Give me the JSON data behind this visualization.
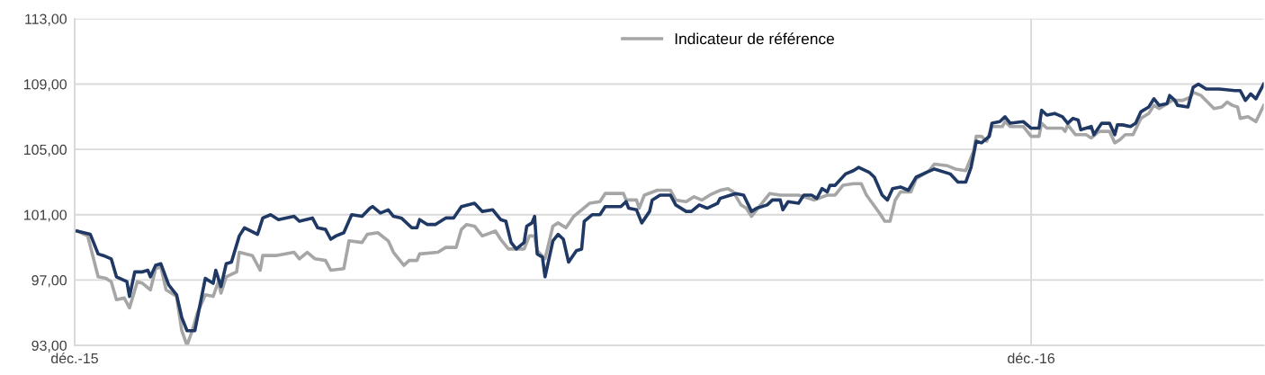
{
  "chart_data": {
    "type": "line",
    "xlim": [
      "2015-12-31",
      "2017-03-30"
    ],
    "xticks": [
      {
        "value": "2015-12-31",
        "label": "déc.-15"
      },
      {
        "value": "2016-12-31",
        "label": "déc.-16"
      }
    ],
    "ylim": [
      93,
      113
    ],
    "yticks": [
      {
        "value": 93,
        "label": "93,00"
      },
      {
        "value": 97,
        "label": "97,00"
      },
      {
        "value": 101,
        "label": "101,00"
      },
      {
        "value": 105,
        "label": "105,00"
      },
      {
        "value": 109,
        "label": "109,00"
      },
      {
        "value": 113,
        "label": "113,00"
      }
    ],
    "grid": true,
    "legend": "top",
    "marker": "none",
    "line_style": "solid",
    "series": [
      {
        "color": "#1f3864",
        "x": [
          "2016-01-01",
          "2016-01-06",
          "2016-01-09",
          "2016-01-11",
          "2016-01-14",
          "2016-01-16",
          "2016-01-20",
          "2016-01-21",
          "2016-01-23",
          "2016-01-26",
          "2016-01-28",
          "2016-01-29",
          "2016-01-31",
          "2016-02-02",
          "2016-02-05",
          "2016-02-08",
          "2016-02-10",
          "2016-02-12",
          "2016-02-15",
          "2016-02-19",
          "2016-02-22",
          "2016-02-23",
          "2016-02-25",
          "2016-02-27",
          "2016-02-29",
          "2016-03-03",
          "2016-03-05",
          "2016-03-10",
          "2016-03-12",
          "2016-03-15",
          "2016-03-18",
          "2016-03-24",
          "2016-03-26",
          "2016-03-31",
          "2016-04-02",
          "2016-04-05",
          "2016-04-07",
          "2016-04-09",
          "2016-04-12",
          "2016-04-15",
          "2016-04-19",
          "2016-04-22",
          "2016-04-23",
          "2016-04-26",
          "2016-04-29",
          "2016-05-01",
          "2016-05-04",
          "2016-05-08",
          "2016-05-10",
          "2016-05-11",
          "2016-05-14",
          "2016-05-17",
          "2016-05-20",
          "2016-05-21",
          "2016-05-24",
          "2016-05-27",
          "2016-06-01",
          "2016-06-04",
          "2016-06-08",
          "2016-06-11",
          "2016-06-13",
          "2016-06-15",
          "2016-06-17",
          "2016-06-20",
          "2016-06-21",
          "2016-06-23",
          "2016-06-24",
          "2016-06-25",
          "2016-06-27",
          "2016-06-28",
          "2016-07-01",
          "2016-07-03",
          "2016-07-05",
          "2016-07-07",
          "2016-07-10",
          "2016-07-12",
          "2016-07-13",
          "2016-07-16",
          "2016-07-19",
          "2016-07-21",
          "2016-07-27",
          "2016-07-29",
          "2016-07-30",
          "2016-08-02",
          "2016-08-04",
          "2016-08-07",
          "2016-08-08",
          "2016-08-11",
          "2016-08-15",
          "2016-08-17",
          "2016-08-21",
          "2016-08-23",
          "2016-08-26",
          "2016-08-29",
          "2016-09-02",
          "2016-09-03",
          "2016-09-07",
          "2016-09-09",
          "2016-09-12",
          "2016-09-15",
          "2016-09-17",
          "2016-09-21",
          "2016-09-23",
          "2016-09-26",
          "2016-09-27",
          "2016-09-29",
          "2016-10-03",
          "2016-10-05",
          "2016-10-08",
          "2016-10-10",
          "2016-10-12",
          "2016-10-14",
          "2016-10-15",
          "2016-10-17",
          "2016-10-21",
          "2016-10-24",
          "2016-10-26",
          "2016-10-30",
          "2016-11-01",
          "2016-11-04",
          "2016-11-06",
          "2016-11-08",
          "2016-11-11",
          "2016-11-14",
          "2016-11-17",
          "2016-11-21",
          "2016-11-24",
          "2016-11-30",
          "2016-12-03",
          "2016-12-06",
          "2016-12-08",
          "2016-12-10",
          "2016-12-12",
          "2016-12-15",
          "2016-12-16",
          "2016-12-19",
          "2016-12-21",
          "2016-12-23",
          "2016-12-28",
          "2016-12-31",
          "2017-01-03",
          "2017-01-04",
          "2017-01-06",
          "2017-01-09",
          "2017-01-12",
          "2017-01-14",
          "2017-01-16",
          "2017-01-18",
          "2017-01-19",
          "2017-01-23",
          "2017-01-24",
          "2017-01-27",
          "2017-01-30",
          "2017-02-01",
          "2017-02-02",
          "2017-02-04",
          "2017-02-07",
          "2017-02-09",
          "2017-02-11",
          "2017-02-14",
          "2017-02-16",
          "2017-02-18",
          "2017-02-21",
          "2017-02-22",
          "2017-02-24",
          "2017-02-25",
          "2017-03-01",
          "2017-03-03",
          "2017-03-05",
          "2017-03-08",
          "2017-03-13",
          "2017-03-19",
          "2017-03-21",
          "2017-03-23",
          "2017-03-25",
          "2017-03-27",
          "2017-03-30"
        ],
        "values": [
          100.0,
          99.8,
          98.6,
          98.5,
          98.3,
          97.2,
          96.9,
          96.0,
          97.5,
          97.5,
          97.6,
          97.2,
          97.9,
          98.0,
          96.7,
          96.1,
          94.7,
          93.9,
          93.9,
          97.1,
          96.8,
          97.6,
          96.6,
          98.0,
          98.1,
          99.7,
          100.2,
          99.8,
          100.8,
          101.0,
          100.7,
          100.9,
          100.6,
          100.8,
          100.2,
          100.1,
          99.5,
          99.7,
          99.9,
          101.0,
          100.9,
          101.4,
          101.5,
          101.1,
          101.3,
          100.9,
          100.8,
          100.2,
          100.2,
          100.7,
          100.4,
          100.4,
          100.7,
          100.8,
          100.8,
          101.5,
          101.7,
          101.2,
          101.3,
          100.7,
          100.6,
          99.3,
          98.9,
          99.3,
          100.3,
          100.5,
          100.9,
          98.6,
          98.4,
          97.2,
          99.4,
          99.8,
          99.5,
          98.1,
          98.8,
          98.9,
          100.6,
          101.0,
          101.0,
          101.5,
          101.5,
          101.8,
          101.4,
          101.3,
          100.5,
          101.2,
          101.9,
          102.2,
          102.2,
          101.6,
          101.2,
          101.2,
          101.6,
          101.4,
          101.7,
          102.0,
          102.2,
          102.3,
          102.2,
          101.2,
          101.4,
          101.6,
          101.9,
          101.9,
          101.3,
          101.8,
          101.7,
          102.2,
          102.2,
          102.0,
          102.6,
          102.4,
          102.8,
          102.8,
          103.5,
          103.7,
          103.9,
          103.6,
          103.3,
          102.2,
          101.9,
          102.6,
          102.7,
          102.5,
          103.3,
          103.6,
          103.8,
          103.5,
          103.0,
          103.0,
          103.9,
          105.5,
          105.4,
          105.8,
          106.6,
          106.7,
          107.0,
          106.6,
          106.7,
          106.3,
          106.3,
          107.4,
          107.1,
          107.2,
          107.0,
          106.6,
          106.9,
          106.8,
          106.2,
          106.4,
          105.9,
          106.6,
          106.6,
          105.9,
          106.5,
          106.5,
          106.4,
          106.6,
          107.3,
          107.6,
          108.1,
          107.7,
          107.8,
          108.3,
          108.0,
          107.7,
          107.6,
          108.8,
          109.0,
          108.7,
          108.7,
          108.6,
          108.6,
          108.0,
          108.4,
          108.1,
          109.0
        ]
      },
      {
        "name": "Indicateur de référence",
        "color": "#a6a6a6",
        "x": [
          "2016-01-01",
          "2016-01-05",
          "2016-01-09",
          "2016-01-12",
          "2016-01-14",
          "2016-01-16",
          "2016-01-19",
          "2016-01-21",
          "2016-01-24",
          "2016-01-26",
          "2016-01-29",
          "2016-01-31",
          "2016-02-02",
          "2016-02-04",
          "2016-02-08",
          "2016-02-10",
          "2016-02-12",
          "2016-02-14",
          "2016-02-16",
          "2016-02-19",
          "2016-02-22",
          "2016-02-24",
          "2016-02-25",
          "2016-02-27",
          "2016-03-02",
          "2016-03-03",
          "2016-03-08",
          "2016-03-11",
          "2016-03-12",
          "2016-03-17",
          "2016-03-24",
          "2016-03-26",
          "2016-03-29",
          "2016-04-01",
          "2016-04-05",
          "2016-04-07",
          "2016-04-12",
          "2016-04-14",
          "2016-04-19",
          "2016-04-21",
          "2016-04-25",
          "2016-04-29",
          "2016-05-01",
          "2016-05-05",
          "2016-05-07",
          "2016-05-10",
          "2016-05-11",
          "2016-05-18",
          "2016-05-21",
          "2016-05-25",
          "2016-05-27",
          "2016-05-29",
          "2016-06-01",
          "2016-06-04",
          "2016-06-09",
          "2016-06-11",
          "2016-06-14",
          "2016-06-20",
          "2016-06-22",
          "2016-06-24",
          "2016-06-25",
          "2016-06-28",
          "2016-07-01",
          "2016-07-03",
          "2016-07-06",
          "2016-07-09",
          "2016-07-12",
          "2016-07-15",
          "2016-07-19",
          "2016-07-21",
          "2016-07-28",
          "2016-07-29",
          "2016-08-02",
          "2016-08-03",
          "2016-08-05",
          "2016-08-10",
          "2016-08-15",
          "2016-08-17",
          "2016-08-21",
          "2016-08-24",
          "2016-08-27",
          "2016-08-30",
          "2016-09-03",
          "2016-09-06",
          "2016-09-08",
          "2016-09-11",
          "2016-09-13",
          "2016-09-15",
          "2016-09-18",
          "2016-09-22",
          "2016-09-26",
          "2016-10-03",
          "2016-10-07",
          "2016-10-09",
          "2016-10-14",
          "2016-10-17",
          "2016-10-20",
          "2016-10-24",
          "2016-10-27",
          "2016-10-29",
          "2016-11-03",
          "2016-11-05",
          "2016-11-07",
          "2016-11-09",
          "2016-11-11",
          "2016-11-15",
          "2016-11-17",
          "2016-11-22",
          "2016-11-24",
          "2016-11-29",
          "2016-12-02",
          "2016-12-06",
          "2016-12-09",
          "2016-12-10",
          "2016-12-12",
          "2016-12-14",
          "2016-12-16",
          "2016-12-20",
          "2016-12-21",
          "2016-12-23",
          "2016-12-28",
          "2016-12-31",
          "2017-01-03",
          "2017-01-04",
          "2017-01-06",
          "2017-01-12",
          "2017-01-13",
          "2017-01-14",
          "2017-01-17",
          "2017-01-21",
          "2017-01-23",
          "2017-01-26",
          "2017-01-30",
          "2017-02-01",
          "2017-02-03",
          "2017-02-05",
          "2017-02-08",
          "2017-02-11",
          "2017-02-14",
          "2017-02-16",
          "2017-02-18",
          "2017-02-23",
          "2017-02-27",
          "2017-03-02",
          "2017-03-03",
          "2017-03-06",
          "2017-03-11",
          "2017-03-14",
          "2017-03-16",
          "2017-03-18",
          "2017-03-20",
          "2017-03-21",
          "2017-03-24",
          "2017-03-27",
          "2017-03-30"
        ],
        "values": [
          100.0,
          99.7,
          97.2,
          97.1,
          96.9,
          95.8,
          95.9,
          95.3,
          96.9,
          96.8,
          96.4,
          97.7,
          97.8,
          96.4,
          96.0,
          93.9,
          93.0,
          93.9,
          95.0,
          96.1,
          96.0,
          96.9,
          96.2,
          97.2,
          97.5,
          98.7,
          98.5,
          97.6,
          98.5,
          98.5,
          98.7,
          98.3,
          98.7,
          98.3,
          98.2,
          97.6,
          97.7,
          99.4,
          99.3,
          99.8,
          99.9,
          99.4,
          98.7,
          97.9,
          98.2,
          98.2,
          98.6,
          98.7,
          99.0,
          99.0,
          100.1,
          100.4,
          100.3,
          99.7,
          100.0,
          99.5,
          98.9,
          98.9,
          99.7,
          99.7,
          98.8,
          98.3,
          100.3,
          100.5,
          100.2,
          100.9,
          101.3,
          101.7,
          101.8,
          102.3,
          102.3,
          101.9,
          101.9,
          101.4,
          102.2,
          102.5,
          102.5,
          101.9,
          101.8,
          102.1,
          101.9,
          102.2,
          102.5,
          102.6,
          102.4,
          101.6,
          101.4,
          100.9,
          101.5,
          102.3,
          102.2,
          102.2,
          102.0,
          101.9,
          102.2,
          102.2,
          102.8,
          102.9,
          102.9,
          102.2,
          101.1,
          100.6,
          100.6,
          101.9,
          102.4,
          102.4,
          103.2,
          103.7,
          104.1,
          104.0,
          103.8,
          103.7,
          104.9,
          105.8,
          105.8,
          105.5,
          106.4,
          106.4,
          106.7,
          106.4,
          106.4,
          105.8,
          105.8,
          106.6,
          106.3,
          106.3,
          106.1,
          106.5,
          105.9,
          105.9,
          105.7,
          106.1,
          106.1,
          105.4,
          105.6,
          105.9,
          105.9,
          106.9,
          107.2,
          107.7,
          107.5,
          108.0,
          108.0,
          108.2,
          108.5,
          108.3,
          107.5,
          107.6,
          107.9,
          107.7,
          107.6,
          106.9,
          107.0,
          106.7,
          107.7
        ]
      }
    ]
  }
}
